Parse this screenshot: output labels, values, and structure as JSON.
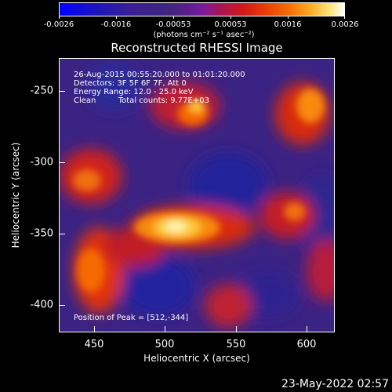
{
  "colorbar": {
    "tick_labels": [
      "-0.0026",
      "-0.0016",
      "-0.00053",
      "0.00053",
      "0.0016",
      "0.0026"
    ],
    "unit_label": "(photons cm⁻² s⁻¹ asec⁻²)"
  },
  "plot": {
    "title": "Reconstructed RHESSI Image",
    "xlabel": "Heliocentric X (arcsec)",
    "ylabel": "Heliocentric Y (arcsec)",
    "x_ticks": [
      "450",
      "500",
      "550",
      "600"
    ],
    "y_ticks": [
      "-250",
      "-300",
      "-350",
      "-400"
    ],
    "xlim": [
      425,
      620
    ],
    "ylim": [
      -425,
      -230
    ]
  },
  "annotations": {
    "time_range": "26-Aug-2015 00:55:20.000 to 01:01:20.000",
    "detectors": "Detectors: 3F 5F 6F 7F, Att 0",
    "energy_range": "Energy Range: 12.0 - 25.0 keV",
    "algorithm": "Clean",
    "total_counts": "Total counts: 9.77E+03",
    "peak": "Position of Peak = [512,-344]"
  },
  "timestamp": "23-May-2022 02:57",
  "colors": {
    "background": "#000000",
    "foreground": "#ffffff",
    "colormap_min": "#0000ff",
    "colormap_mid": "#3f2480",
    "colormap_max": "#ffffff"
  }
}
